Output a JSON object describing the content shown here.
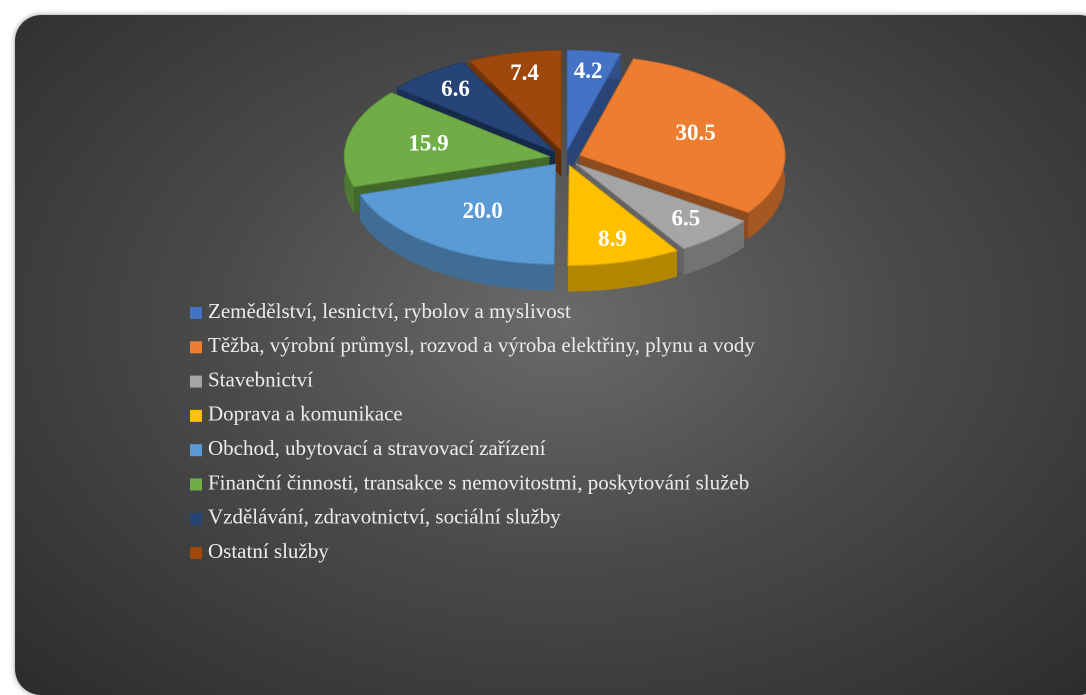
{
  "chart_data": {
    "type": "pie3d",
    "categories": [
      "Zemědělství, lesnictví, rybolov a myslivost",
      "Těžba, výrobní průmysl, rozvod a výroba elektřiny, plynu a vody",
      "Stavebnictví",
      "Doprava a komunikace",
      "Obchod, ubytovací a stravovací zařízení",
      "Finanční činnosti, transakce s nemovitostmi, poskytování služeb",
      "Vzdělávání, zdravotnictví, sociální služby",
      "Ostatní služby"
    ],
    "values": [
      4.2,
      30.5,
      6.5,
      8.9,
      20.0,
      15.9,
      6.6,
      7.4
    ],
    "value_labels": [
      "4.2",
      "30.5",
      "6.5",
      "8.9",
      "20.0",
      "15.9",
      "6.6",
      "7.4"
    ],
    "colors": [
      "#4472c4",
      "#ed7d31",
      "#a5a5a5",
      "#ffc000",
      "#5b9bd5",
      "#70ad47",
      "#264478",
      "#9e480e"
    ],
    "legend": "bottom"
  }
}
